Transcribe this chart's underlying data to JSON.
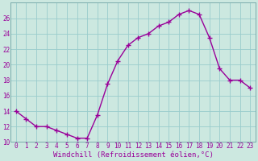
{
  "x": [
    0,
    1,
    2,
    3,
    4,
    5,
    6,
    7,
    8,
    9,
    10,
    11,
    12,
    13,
    14,
    15,
    16,
    17,
    18,
    19,
    20,
    21,
    22,
    23
  ],
  "y": [
    14,
    13,
    12,
    12,
    11.5,
    11,
    10.5,
    10.5,
    13.5,
    17.5,
    20.5,
    22.5,
    23.5,
    24,
    25,
    25.5,
    26.5,
    27,
    26.5,
    23.5,
    19.5,
    18,
    18,
    17
  ],
  "line_color": "#990099",
  "marker": "+",
  "marker_size": 4,
  "marker_linewidth": 1.0,
  "bg_color": "#cce8e0",
  "grid_color": "#99cccc",
  "xlabel": "Windchill (Refroidissement éolien,°C)",
  "xlabel_color": "#990099",
  "xlabel_fontsize": 6.5,
  "tick_color": "#990099",
  "tick_fontsize": 5.5,
  "ylim": [
    10,
    28
  ],
  "xlim_min": -0.5,
  "xlim_max": 23.5,
  "yticks": [
    10,
    12,
    14,
    16,
    18,
    20,
    22,
    24,
    26
  ],
  "xticks": [
    0,
    1,
    2,
    3,
    4,
    5,
    6,
    7,
    8,
    9,
    10,
    11,
    12,
    13,
    14,
    15,
    16,
    17,
    18,
    19,
    20,
    21,
    22,
    23
  ],
  "linewidth": 1.0
}
